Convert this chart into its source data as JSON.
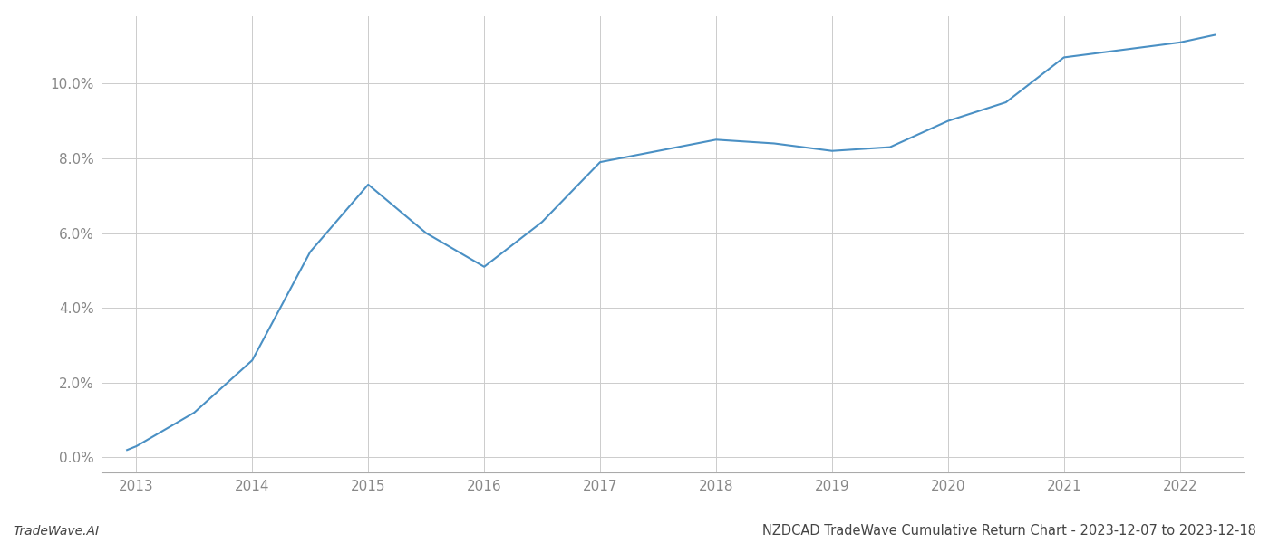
{
  "x_years": [
    2012.92,
    2013.0,
    2013.5,
    2014.0,
    2014.5,
    2015.0,
    2015.5,
    2016.0,
    2016.5,
    2017.0,
    2017.5,
    2018.0,
    2018.5,
    2019.0,
    2019.5,
    2020.0,
    2020.5,
    2021.0,
    2021.5,
    2022.0,
    2022.3
  ],
  "y_values": [
    0.002,
    0.003,
    0.012,
    0.026,
    0.055,
    0.073,
    0.06,
    0.051,
    0.063,
    0.079,
    0.082,
    0.085,
    0.084,
    0.082,
    0.083,
    0.09,
    0.095,
    0.107,
    0.109,
    0.111,
    0.113
  ],
  "line_color": "#4a90c4",
  "background_color": "#ffffff",
  "grid_color": "#cccccc",
  "axis_color": "#aaaaaa",
  "tick_label_color": "#888888",
  "title_text": "NZDCAD TradeWave Cumulative Return Chart - 2023-12-07 to 2023-12-18",
  "footer_left": "TradeWave.AI",
  "xlim": [
    2012.7,
    2022.55
  ],
  "ylim": [
    -0.004,
    0.118
  ],
  "yticks": [
    0.0,
    0.02,
    0.04,
    0.06,
    0.08,
    0.1
  ],
  "xticks": [
    2013,
    2014,
    2015,
    2016,
    2017,
    2018,
    2019,
    2020,
    2021,
    2022
  ],
  "line_width": 1.5,
  "title_fontsize": 10.5,
  "tick_fontsize": 11,
  "footer_fontsize": 10
}
